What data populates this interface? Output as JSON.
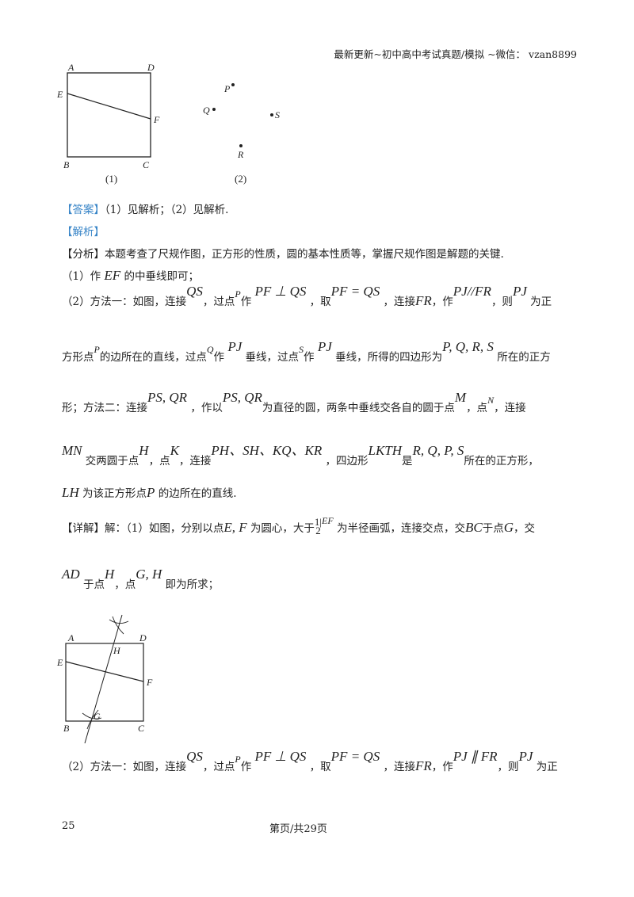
{
  "header": "最新更新~初中高中考试真题/模拟 ~微信： vzan8899",
  "figure1": {
    "labels": [
      "A",
      "D",
      "E",
      "F",
      "B",
      "C"
    ],
    "caption": "(1)"
  },
  "figure2": {
    "labels": [
      "P",
      "Q",
      "S",
      "R"
    ],
    "caption": "(2)"
  },
  "figure3": {
    "labels": [
      "A",
      "D",
      "E",
      "H",
      "F",
      "G",
      "B",
      "C"
    ]
  },
  "lines": [
    [
      {
        "c": "blue",
        "t": "【答案】"
      },
      {
        "t": "（1）见解析；（2）见解析."
      }
    ],
    [
      {
        "c": "blue",
        "t": "【解析】"
      }
    ],
    [
      {
        "t": "【分析】本题考查了尺规作图，正方形的性质，圆的基本性质等，掌握尺规作图是解题的关键."
      }
    ],
    [
      {
        "t": "（1）作 "
      },
      {
        "c": "m",
        "t": "EF"
      },
      {
        "t": " 的中垂线即可；"
      }
    ],
    [
      {
        "t": "（2）方法一：如图，连接"
      },
      {
        "c": "s",
        "t": "QS"
      },
      {
        "t": "，过点"
      },
      {
        "c": "sm",
        "t": "P"
      },
      {
        "t": "作 "
      },
      {
        "c": "s",
        "t": "PF ⊥ QS"
      },
      {
        "t": " ，取"
      },
      {
        "c": "s",
        "t": "PF = QS"
      },
      {
        "t": " ，连接"
      },
      {
        "c": "m",
        "t": "FR"
      },
      {
        "t": "，作"
      },
      {
        "c": "s",
        "t": "PJ//FR"
      },
      {
        "t": "，则"
      },
      {
        "c": "s",
        "t": "PJ"
      },
      {
        "t": " 为正"
      }
    ],
    [
      {
        "t": "方形点"
      },
      {
        "c": "sm",
        "t": "P"
      },
      {
        "t": "的边所在的直线，过点"
      },
      {
        "c": "sm",
        "t": "Q"
      },
      {
        "t": "作 "
      },
      {
        "c": "s",
        "t": "PJ"
      },
      {
        "t": " 垂线，过点"
      },
      {
        "c": "sm",
        "t": "S"
      },
      {
        "t": "作 "
      },
      {
        "c": "s",
        "t": "PJ"
      },
      {
        "t": " 垂线，所得的四边形为"
      },
      {
        "c": "s",
        "t": "P, Q, R, S"
      },
      {
        "t": " 所在的正方"
      }
    ],
    [
      {
        "t": "形；方法二：连接"
      },
      {
        "c": "s",
        "t": "PS, QR"
      },
      {
        "t": " ，作以"
      },
      {
        "c": "s",
        "t": "PS, QR"
      },
      {
        "t": "为直径的圆，两条中垂线交各自的圆于点"
      },
      {
        "c": "s",
        "t": "M"
      },
      {
        "t": "，点"
      },
      {
        "c": "sm",
        "t": "N"
      },
      {
        "t": "，连接"
      }
    ],
    [
      {
        "c": "s",
        "t": "MN"
      },
      {
        "t": " 交两圆于点"
      },
      {
        "c": "s",
        "t": "H"
      },
      {
        "t": "，点"
      },
      {
        "c": "s",
        "t": "K"
      },
      {
        "t": "，连接"
      },
      {
        "c": "s",
        "t": "PH、SH、KQ、KR"
      },
      {
        "t": " ，四边形"
      },
      {
        "c": "s",
        "t": "LKTH"
      },
      {
        "t": "是"
      },
      {
        "c": "s",
        "t": "R, Q, P, S"
      },
      {
        "t": "所在的正方形，"
      }
    ],
    [
      {
        "c": "m",
        "t": "LH"
      },
      {
        "t": " 为该正方形点"
      },
      {
        "c": "m",
        "t": "P"
      },
      {
        "t": " 的边所在的直线."
      }
    ],
    [
      {
        "t": "【详解】解：（1）如图，分别以点"
      },
      {
        "c": "m",
        "t": "E, F"
      },
      {
        "t": " 为圆心，大于"
      },
      {
        "c": "frac",
        "t": "1|2",
        "u": "EF"
      },
      {
        "t": " 为半径画弧，连接交点，交"
      },
      {
        "c": "m",
        "t": "BC"
      },
      {
        "t": "于点"
      },
      {
        "c": "m",
        "t": "G"
      },
      {
        "t": "，交"
      }
    ],
    [
      {
        "c": "s",
        "t": "AD"
      },
      {
        "t": " 于点"
      },
      {
        "c": "s",
        "t": "H"
      },
      {
        "t": "，点"
      },
      {
        "c": "s",
        "t": "G, H"
      },
      {
        "t": " 即为所求；"
      }
    ],
    [
      {
        "t": "（2）方法一：如图，连接"
      },
      {
        "c": "s",
        "t": "QS"
      },
      {
        "t": "，过点"
      },
      {
        "c": "sm",
        "t": "P"
      },
      {
        "t": "作 "
      },
      {
        "c": "s",
        "t": "PF ⊥ QS"
      },
      {
        "t": " ，取"
      },
      {
        "c": "s",
        "t": "PF = QS"
      },
      {
        "t": " ，连接"
      },
      {
        "c": "m",
        "t": "FR"
      },
      {
        "t": "，作"
      },
      {
        "c": "s",
        "t": "PJ ∥ FR"
      },
      {
        "t": "，则"
      },
      {
        "c": "s",
        "t": "PJ"
      },
      {
        "t": " 为正"
      }
    ]
  ],
  "footer": {
    "page_number": "25",
    "page_info": "第页/共29页"
  }
}
